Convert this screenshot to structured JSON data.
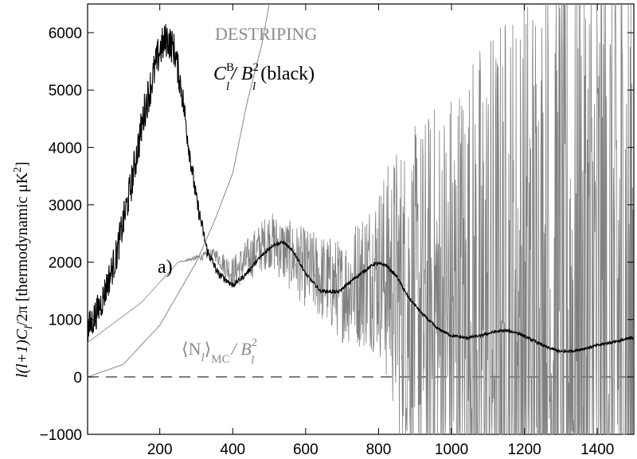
{
  "chart_data": {
    "type": "line",
    "title": "",
    "xlabel": "",
    "ylabel": {
      "lhs": "l(l+1)C",
      "lhs_sub": "l",
      "rhs": "/2π [thermodynamic μK",
      "rhs_sup": "2",
      "rhs_end": "]"
    },
    "xlim": [
      2,
      1500
    ],
    "ylim": [
      -1000,
      6500
    ],
    "x_ticks": [
      200,
      400,
      600,
      800,
      1000,
      1200,
      1400
    ],
    "y_ticks": [
      -1000,
      0,
      1000,
      2000,
      3000,
      4000,
      5000,
      6000
    ],
    "zero_line": true,
    "annotations": {
      "method": "DESTRIPING",
      "signal_main": "C",
      "signal_sup": "B",
      "signal_sub": "l",
      "signal_div": "/ B",
      "signal_div_sup": "2",
      "signal_div_sub": "l",
      "signal_suffix": "(black)",
      "panel": "a)",
      "noise_open": "⟨N",
      "noise_sub": "l",
      "noise_close": "⟩",
      "noise_mc": "MC",
      "noise_div": "/ B",
      "noise_div_sup": "2",
      "noise_div_sub": "l"
    },
    "series": [
      {
        "color": "#000000",
        "x": [
          2,
          40,
          80,
          120,
          160,
          200,
          220,
          240,
          260,
          280,
          300,
          330,
          360,
          400,
          430,
          470,
          510,
          540,
          570,
          600,
          640,
          690,
          740,
          790,
          820,
          850,
          880,
          920,
          960,
          1000,
          1040,
          1080,
          1120,
          1150,
          1180,
          1220,
          1260,
          1300,
          1340,
          1380,
          1420,
          1460,
          1500
        ],
        "y": [
          800,
          1300,
          2100,
          3300,
          4700,
          5700,
          5900,
          5700,
          5000,
          4000,
          3100,
          2200,
          1800,
          1600,
          1750,
          2050,
          2300,
          2350,
          2150,
          1800,
          1500,
          1480,
          1750,
          1980,
          1950,
          1750,
          1400,
          1100,
          850,
          720,
          680,
          720,
          790,
          810,
          770,
          650,
          520,
          440,
          460,
          520,
          580,
          630,
          690
        ],
        "noise": [
          300,
          280,
          300,
          320,
          340,
          340,
          320,
          300,
          280,
          220,
          160,
          100,
          70,
          50,
          40,
          35,
          30,
          30,
          30,
          30,
          30,
          30,
          30,
          30,
          30,
          30,
          30,
          30,
          25,
          25,
          25,
          25,
          25,
          25,
          25,
          25,
          25,
          25,
          25,
          25,
          25,
          25,
          25
        ]
      },
      {
        "color": "#808080",
        "x": [
          2,
          150,
          250,
          350,
          400,
          500,
          600,
          700,
          800,
          850,
          900,
          1000,
          1100,
          1200,
          1300,
          1400,
          1500
        ],
        "y": [
          600,
          1300,
          2000,
          2150,
          1800,
          2400,
          1900,
          1500,
          1900,
          1600,
          1100,
          800,
          700,
          600,
          500,
          600,
          700
        ],
        "noise": [
          0,
          0,
          0,
          100,
          300,
          500,
          700,
          900,
          1500,
          2500,
          3300,
          4500,
          5500,
          6500,
          7500,
          8000,
          8500
        ]
      },
      {
        "color": "#888888",
        "type": "curve",
        "x": [
          2,
          100,
          200,
          300,
          350,
          400,
          440,
          480,
          500
        ],
        "y": [
          0,
          220,
          900,
          2000,
          2720,
          3550,
          4800,
          5800,
          6500
        ]
      }
    ]
  }
}
